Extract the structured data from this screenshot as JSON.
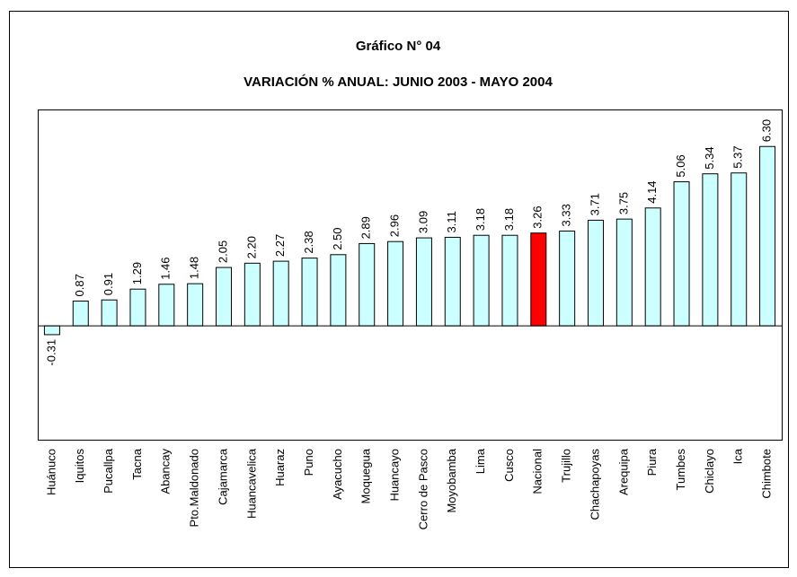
{
  "chart_data": {
    "type": "bar",
    "title": "Gráfico N° 04",
    "subtitle": "VARIACIÓN % ANUAL: JUNIO 2003 - MAYO 2004",
    "categories": [
      "Huánuco",
      "Iquitos",
      "Pucallpa",
      "Tacna",
      "Abancay",
      "Pto.Maldonado",
      "Cajamarca",
      "Huancavelica",
      "Huaraz",
      "Puno",
      "Ayacucho",
      "Moquegua",
      "Huancayo",
      "Cerro de Pasco",
      "Moyobamba",
      "Lima",
      "Cusco",
      "Nacional",
      "Trujillo",
      "Chachapoyas",
      "Arequipa",
      "Piura",
      "Tumbes",
      "Chiclayo",
      "Ica",
      "Chimbote"
    ],
    "values": [
      -0.31,
      0.87,
      0.91,
      1.29,
      1.46,
      1.48,
      2.05,
      2.2,
      2.27,
      2.38,
      2.5,
      2.89,
      2.96,
      3.09,
      3.11,
      3.18,
      3.18,
      3.26,
      3.33,
      3.71,
      3.75,
      4.14,
      5.06,
      5.34,
      5.37,
      6.3
    ],
    "value_labels": [
      "-0.31",
      "0.87",
      "0.91",
      "1.29",
      "1.46",
      "1.48",
      "2.05",
      "2.20",
      "2.27",
      "2.38",
      "2.50",
      "2.89",
      "2.96",
      "3.09",
      "3.11",
      "3.18",
      "3.18",
      "3.26",
      "3.33",
      "3.71",
      "3.75",
      "4.14",
      "5.06",
      "5.34",
      "5.37",
      "6.30"
    ],
    "colors": [
      "#ccffff",
      "#ccffff",
      "#ccffff",
      "#ccffff",
      "#ccffff",
      "#ccffff",
      "#ccffff",
      "#ccffff",
      "#ccffff",
      "#ccffff",
      "#ccffff",
      "#ccffff",
      "#ccffff",
      "#ccffff",
      "#ccffff",
      "#ccffff",
      "#ccffff",
      "#ff0000",
      "#ccffff",
      "#ccffff",
      "#ccffff",
      "#ccffff",
      "#ccffff",
      "#ccffff",
      "#ccffff",
      "#ccffff"
    ],
    "ylim": [
      -4,
      7.6
    ]
  }
}
